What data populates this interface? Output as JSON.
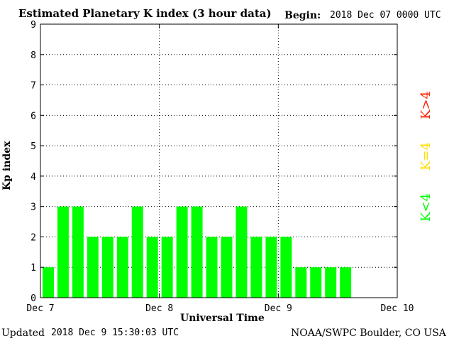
{
  "chart_data": {
    "type": "bar",
    "title": "Estimated Planetary K index (3 hour data)",
    "begin_label": "Begin:",
    "begin_value": "2018 Dec 07 0000 UTC",
    "ylabel": "Kp index",
    "xlabel": "Universal Time",
    "ylim": [
      0,
      9
    ],
    "yticks": [
      "0",
      "1",
      "2",
      "3",
      "4",
      "5",
      "6",
      "7",
      "8",
      "9"
    ],
    "xticks": [
      "Dec 7",
      "Dec 8",
      "Dec 9",
      "Dec 10"
    ],
    "values": [
      1,
      3,
      3,
      2,
      2,
      2,
      3,
      2,
      2,
      3,
      3,
      2,
      2,
      3,
      2,
      2,
      2,
      1,
      1,
      1,
      1
    ],
    "series": [
      {
        "name": "K<4",
        "color": "#00ff00"
      },
      {
        "name": "K=4",
        "color": "#ffdd00"
      },
      {
        "name": "K>4",
        "color": "#ff2200"
      }
    ],
    "grid": true
  },
  "footer": {
    "updated_label": "Updated",
    "updated_value": "2018 Dec  9 15:30:03 UTC",
    "source": "NOAA/SWPC Boulder, CO USA"
  },
  "legend": {
    "gt": "K>4",
    "eq": "K=4",
    "lt": "K<4"
  },
  "colors": {
    "below": "#00ff00",
    "equal": "#ffdd00",
    "above": "#ff2200"
  }
}
